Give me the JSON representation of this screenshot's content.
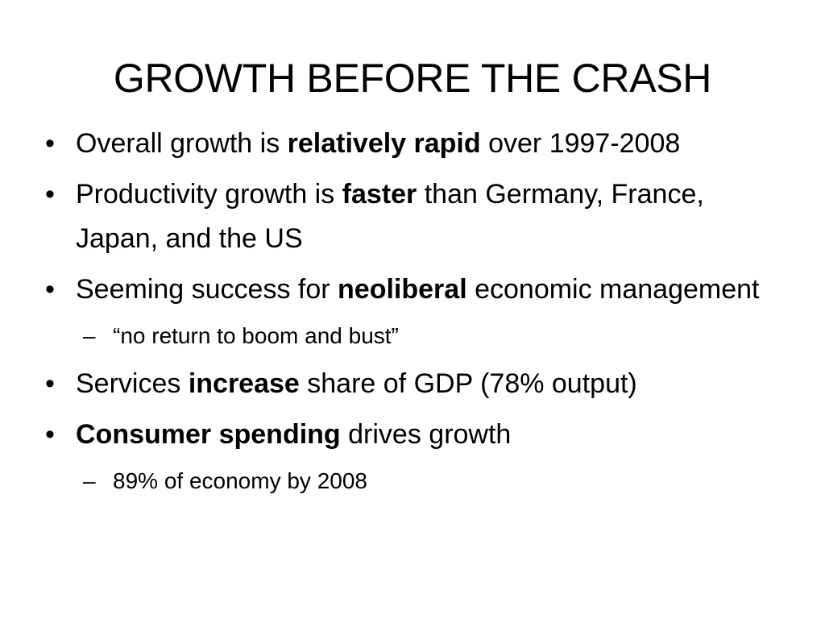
{
  "slide": {
    "title": "GROWTH BEFORE THE CRASH",
    "bullet_marker": "•",
    "sub_marker": "–",
    "bullets": [
      {
        "pre": "Overall growth is ",
        "bold": "relatively rapid",
        "post": " over 1997-2008"
      },
      {
        "pre": "Productivity growth is ",
        "bold": "faster",
        "post": " than Germany, France, Japan, and the US"
      },
      {
        "pre": "Seeming success for ",
        "bold": "neoliberal",
        "post": " economic management"
      },
      {
        "sub": "“no return to boom and bust”"
      },
      {
        "pre": "Services ",
        "bold": "increase",
        "post": " share of GDP (78% output)"
      },
      {
        "pre": "",
        "bold": "Consumer spending",
        "post": " drives growth"
      },
      {
        "sub": "89% of economy by 2008"
      }
    ]
  }
}
